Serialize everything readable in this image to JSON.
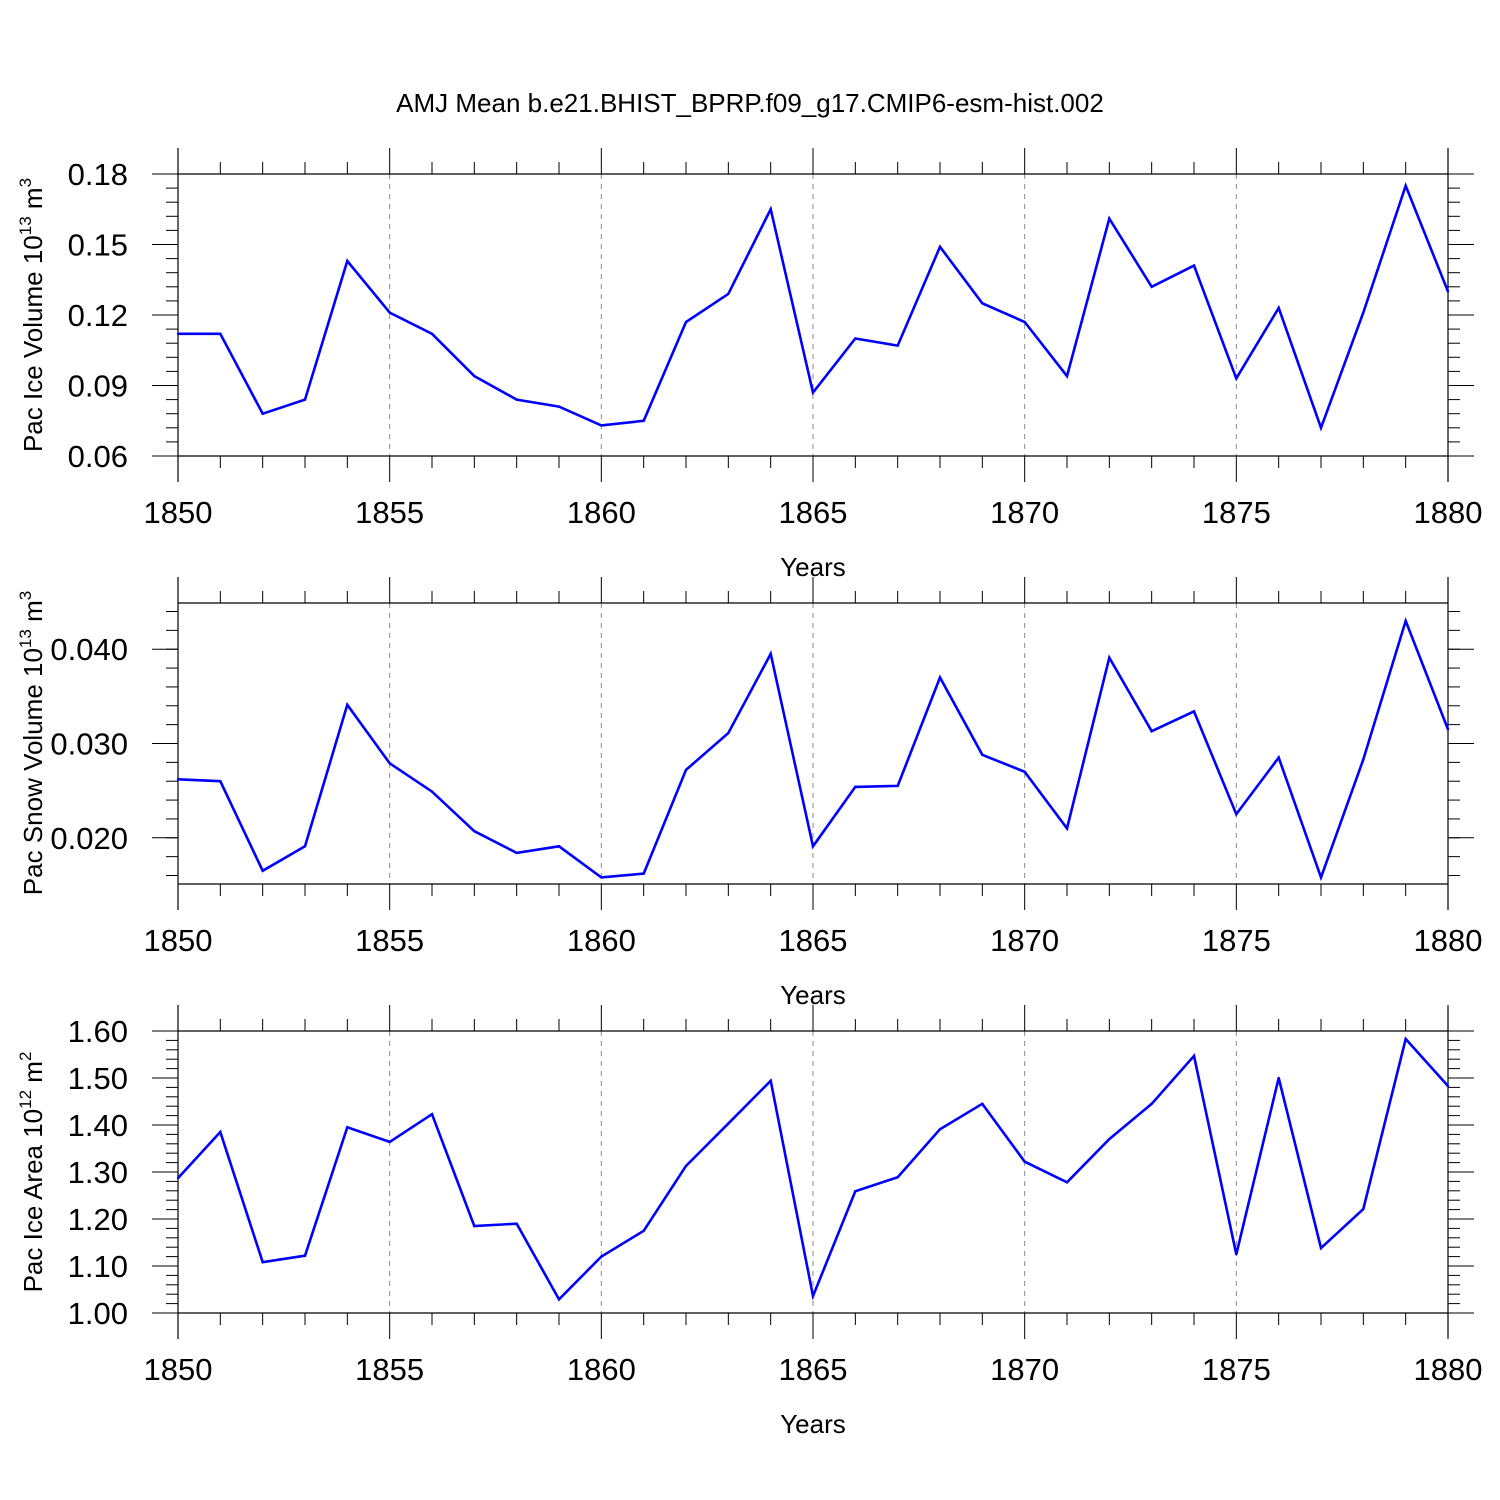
{
  "title": "AMJ Mean b.e21.BHIST_BPRP.f09_g17.CMIP6-esm-hist.002",
  "line_color": "#0000ff",
  "chart_data": [
    {
      "type": "line",
      "xlabel": "Years",
      "ylabel": {
        "text": "Pac Ice Volume 10",
        "exp": "13",
        "unit": " m",
        "unit_exp": "3"
      },
      "xlim": [
        1850,
        1880
      ],
      "ylim": [
        0.06,
        0.18
      ],
      "xticks": [
        1850,
        1855,
        1860,
        1865,
        1870,
        1875,
        1880
      ],
      "xtick_labels": [
        "1850",
        "1855",
        "1860",
        "1865",
        "1870",
        "1875",
        "1880"
      ],
      "yticks": [
        0.06,
        0.09,
        0.12,
        0.15,
        0.18
      ],
      "ytick_labels": [
        "0.06",
        "0.09",
        "0.12",
        "0.15",
        "0.18"
      ],
      "x": [
        1850,
        1851,
        1852,
        1853,
        1854,
        1855,
        1856,
        1857,
        1858,
        1859,
        1860,
        1861,
        1862,
        1863,
        1864,
        1865,
        1866,
        1867,
        1868,
        1869,
        1870,
        1871,
        1872,
        1873,
        1874,
        1875,
        1876,
        1877,
        1878,
        1879,
        1880
      ],
      "values": [
        0.112,
        0.112,
        0.078,
        0.084,
        0.143,
        0.121,
        0.112,
        0.094,
        0.084,
        0.081,
        0.073,
        0.075,
        0.117,
        0.129,
        0.165,
        0.087,
        0.11,
        0.107,
        0.149,
        0.125,
        0.117,
        0.094,
        0.161,
        0.132,
        0.141,
        0.093,
        0.123,
        0.072,
        0.121,
        0.175,
        0.13
      ]
    },
    {
      "type": "line",
      "xlabel": "Years",
      "ylabel": {
        "text": "Pac Snow Volume 10",
        "exp": "13",
        "unit": " m",
        "unit_exp": "3"
      },
      "xlim": [
        1850,
        1880
      ],
      "ylim": [
        0.0151,
        0.0449
      ],
      "xticks": [
        1850,
        1855,
        1860,
        1865,
        1870,
        1875,
        1880
      ],
      "xtick_labels": [
        "1850",
        "1855",
        "1860",
        "1865",
        "1870",
        "1875",
        "1880"
      ],
      "yticks": [
        0.02,
        0.03,
        0.04
      ],
      "ytick_labels": [
        "0.020",
        "0.030",
        "0.040"
      ],
      "x": [
        1850,
        1851,
        1852,
        1853,
        1854,
        1855,
        1856,
        1857,
        1858,
        1859,
        1860,
        1861,
        1862,
        1863,
        1864,
        1865,
        1866,
        1867,
        1868,
        1869,
        1870,
        1871,
        1872,
        1873,
        1874,
        1875,
        1876,
        1877,
        1878,
        1879,
        1880
      ],
      "values": [
        0.0262,
        0.026,
        0.0165,
        0.0191,
        0.0341,
        0.0279,
        0.0249,
        0.0207,
        0.0184,
        0.0191,
        0.0158,
        0.0162,
        0.0272,
        0.0311,
        0.0395,
        0.0191,
        0.0254,
        0.0255,
        0.037,
        0.0288,
        0.027,
        0.021,
        0.0391,
        0.0313,
        0.0334,
        0.0225,
        0.0285,
        0.0158,
        0.0283,
        0.043,
        0.0315
      ]
    },
    {
      "type": "line",
      "xlabel": "Years",
      "ylabel": {
        "text": "Pac Ice Area 10",
        "exp": "12",
        "unit": " m",
        "unit_exp": "2"
      },
      "xlim": [
        1850,
        1880
      ],
      "ylim": [
        1.0,
        1.6
      ],
      "xticks": [
        1850,
        1855,
        1860,
        1865,
        1870,
        1875,
        1880
      ],
      "xtick_labels": [
        "1850",
        "1855",
        "1860",
        "1865",
        "1870",
        "1875",
        "1880"
      ],
      "yticks": [
        1.0,
        1.1,
        1.2,
        1.3,
        1.4,
        1.5,
        1.6
      ],
      "ytick_labels": [
        "1.00",
        "1.10",
        "1.20",
        "1.30",
        "1.40",
        "1.50",
        "1.60"
      ],
      "x": [
        1850,
        1851,
        1852,
        1853,
        1854,
        1855,
        1856,
        1857,
        1858,
        1859,
        1860,
        1861,
        1862,
        1863,
        1864,
        1865,
        1866,
        1867,
        1868,
        1869,
        1870,
        1871,
        1872,
        1873,
        1874,
        1875,
        1876,
        1877,
        1878,
        1879,
        1880
      ],
      "values": [
        1.287,
        1.385,
        1.108,
        1.122,
        1.395,
        1.364,
        1.423,
        1.185,
        1.19,
        1.029,
        1.12,
        1.175,
        1.313,
        1.403,
        1.494,
        1.036,
        1.259,
        1.289,
        1.391,
        1.445,
        1.322,
        1.278,
        1.37,
        1.445,
        1.547,
        1.125,
        1.5,
        1.138,
        1.221,
        1.583,
        1.483
      ]
    }
  ]
}
